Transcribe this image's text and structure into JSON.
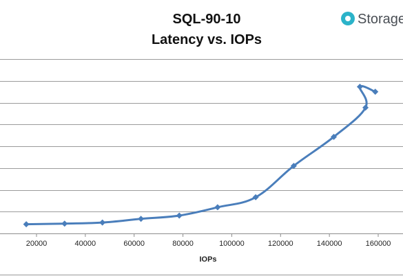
{
  "brand": {
    "name": "Storage",
    "icon": "storagereview-logo-icon",
    "color": "#2bb3c9"
  },
  "chart_data": {
    "type": "line",
    "title": "SQL-90-10",
    "subtitle": "Latency vs. IOPs",
    "xlabel": "IOPs",
    "ylabel": "",
    "xlim": [
      0,
      170000
    ],
    "ylim": [
      0,
      8
    ],
    "x_ticks": [
      20000,
      40000,
      60000,
      80000,
      100000,
      120000,
      140000,
      160000
    ],
    "y_gridlines": 8,
    "grid": true,
    "legend": "none",
    "line_color": "#4a7ebb",
    "series": [
      {
        "x": [
          15800,
          31500,
          47000,
          62800,
          78500,
          94200,
          109800,
          125400,
          141800,
          154800,
          152500,
          158800
        ],
        "y": [
          0.42,
          0.45,
          0.5,
          0.67,
          0.82,
          1.2,
          1.66,
          3.1,
          4.43,
          5.77,
          6.73,
          6.5
        ]
      }
    ]
  }
}
